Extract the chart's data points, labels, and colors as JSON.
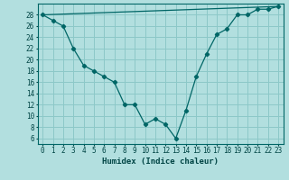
{
  "xlabel": "Humidex (Indice chaleur)",
  "background_color": "#b2dfdf",
  "grid_color": "#8cc8c8",
  "line_color": "#006666",
  "xlim": [
    -0.5,
    23.5
  ],
  "ylim": [
    5,
    30
  ],
  "yticks": [
    6,
    8,
    10,
    12,
    14,
    16,
    18,
    20,
    22,
    24,
    26,
    28
  ],
  "xticks": [
    0,
    1,
    2,
    3,
    4,
    5,
    6,
    7,
    8,
    9,
    10,
    11,
    12,
    13,
    14,
    15,
    16,
    17,
    18,
    19,
    20,
    21,
    22,
    23
  ],
  "humidex_x": [
    0,
    1,
    2,
    3,
    4,
    5,
    6,
    7,
    8,
    9,
    10,
    11,
    12,
    13,
    14,
    15,
    16,
    17,
    18,
    19,
    20,
    21,
    22,
    23
  ],
  "humidex_y": [
    28,
    27,
    26,
    22,
    19,
    18,
    17,
    16,
    12,
    12,
    8.5,
    9.5,
    8.5,
    6,
    11,
    17,
    21,
    24.5,
    25.5,
    28,
    28,
    29,
    29,
    29.5
  ],
  "trend_x": [
    0,
    23
  ],
  "trend_y": [
    28,
    29.5
  ]
}
